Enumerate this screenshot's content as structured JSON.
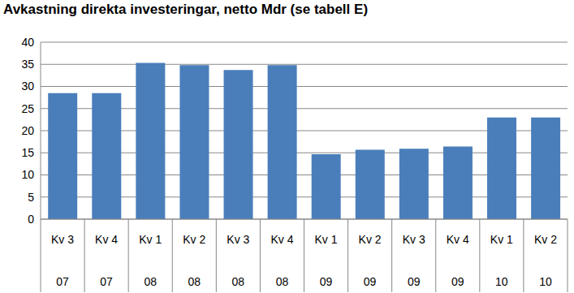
{
  "chart_data": {
    "type": "bar",
    "title": "Avkastning direkta investeringar, netto Mdr (se tabell E)",
    "categories": [
      [
        "Kv 3",
        "07"
      ],
      [
        "Kv 4",
        "07"
      ],
      [
        "Kv 1",
        "08"
      ],
      [
        "Kv 2",
        "08"
      ],
      [
        "Kv 3",
        "08"
      ],
      [
        "Kv 4",
        "08"
      ],
      [
        "Kv 1",
        "09"
      ],
      [
        "Kv 2",
        "09"
      ],
      [
        "Kv 3",
        "09"
      ],
      [
        "Kv 4",
        "09"
      ],
      [
        "Kv 1",
        "10"
      ],
      [
        "Kv 2",
        "10"
      ]
    ],
    "values": [
      28.5,
      28.5,
      35.3,
      34.8,
      33.7,
      34.8,
      14.7,
      15.7,
      15.9,
      16.4,
      23.0,
      23.0
    ],
    "color": "#4a7ebb",
    "ylim": [
      0,
      40
    ],
    "yticks": [
      0,
      5,
      10,
      15,
      20,
      25,
      30,
      35,
      40
    ],
    "grid": true
  }
}
